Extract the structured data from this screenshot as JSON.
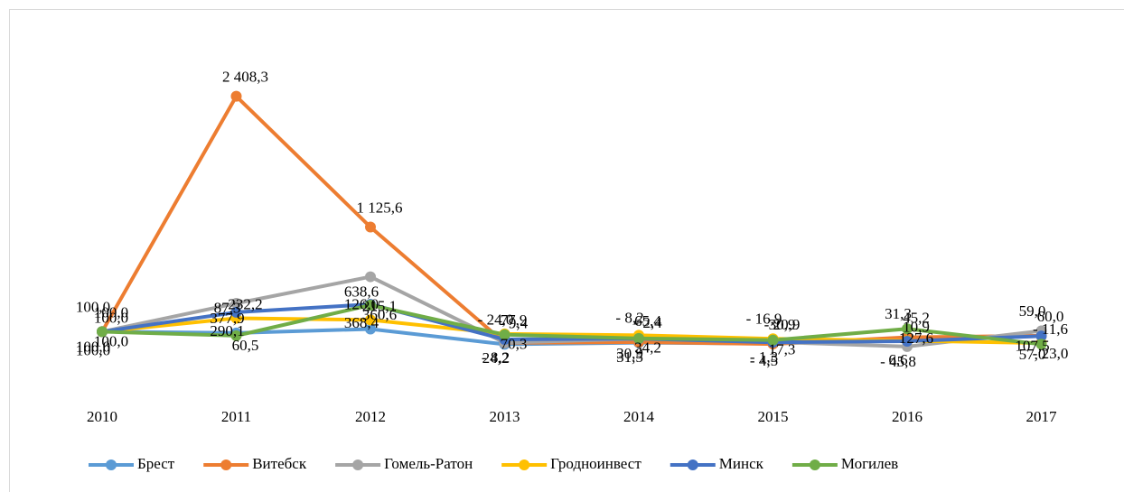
{
  "chart_data": {
    "type": "line",
    "categories": [
      "2010",
      "2011",
      "2012",
      "2013",
      "2014",
      "2015",
      "2016",
      "2017"
    ],
    "ylim": [
      -100,
      2600
    ],
    "series": [
      {
        "name": "Брест",
        "color": "#5b9bd5",
        "values": [
          100,
          87.3,
          126,
          -24,
          -8.2,
          -16.9,
          31.3,
          59
        ],
        "value_labels": [
          "100,0",
          "87,3",
          "126,0",
          "- 24,0",
          "- 8,2",
          "- 16,9",
          "31,3",
          "59,0"
        ]
      },
      {
        "name": "Витебск",
        "color": "#ed7d31",
        "values": [
          100,
          2408.3,
          1125.6,
          -9.4,
          -2.4,
          -20.9,
          45.2,
          60
        ],
        "value_labels": [
          "100,0",
          "2 408,3",
          "1 125,6",
          "- 9,4",
          "- 2,4",
          "- 20,9",
          "45,2",
          "60,0"
        ]
      },
      {
        "name": "Гомель-Ратон",
        "color": "#a5a5a5",
        "values": [
          100,
          377.9,
          638.6,
          -8.2,
          30.9,
          -1.3,
          -45.8,
          107.5
        ],
        "value_labels": [
          "100,0",
          "377,9",
          "638,6",
          "- 8,2",
          "30,9",
          "- 1,3",
          "- 45,8",
          "107,5"
        ]
      },
      {
        "name": "Гродноинвест",
        "color": "#ffc000",
        "values": [
          100,
          232.2,
          215.1,
          77.9,
          65.4,
          30.9,
          10.9,
          -11.6
        ],
        "value_labels": [
          "100,0",
          "232,2",
          "215,1",
          "77,9",
          "65,4",
          "30,9",
          "10,9",
          "- 11,6"
        ]
      },
      {
        "name": "Минск",
        "color": "#4472c4",
        "values": [
          100,
          290.1,
          368.4,
          24.2,
          31.5,
          -4.5,
          6.6,
          57
        ],
        "value_labels": [
          "100,0",
          "290,1",
          "368,4",
          "24,2",
          "31,5",
          "- 4,5",
          "6,6",
          "57,0"
        ]
      },
      {
        "name": "Могилев",
        "color": "#70ad47",
        "values": [
          100,
          60.5,
          360.6,
          70.3,
          34.2,
          17.3,
          127.6,
          -23
        ],
        "value_labels": [
          "100,0",
          "60,5",
          "360,6",
          "70,3",
          "34,2",
          "17,3",
          "127,6",
          "- 23,0"
        ]
      }
    ]
  }
}
